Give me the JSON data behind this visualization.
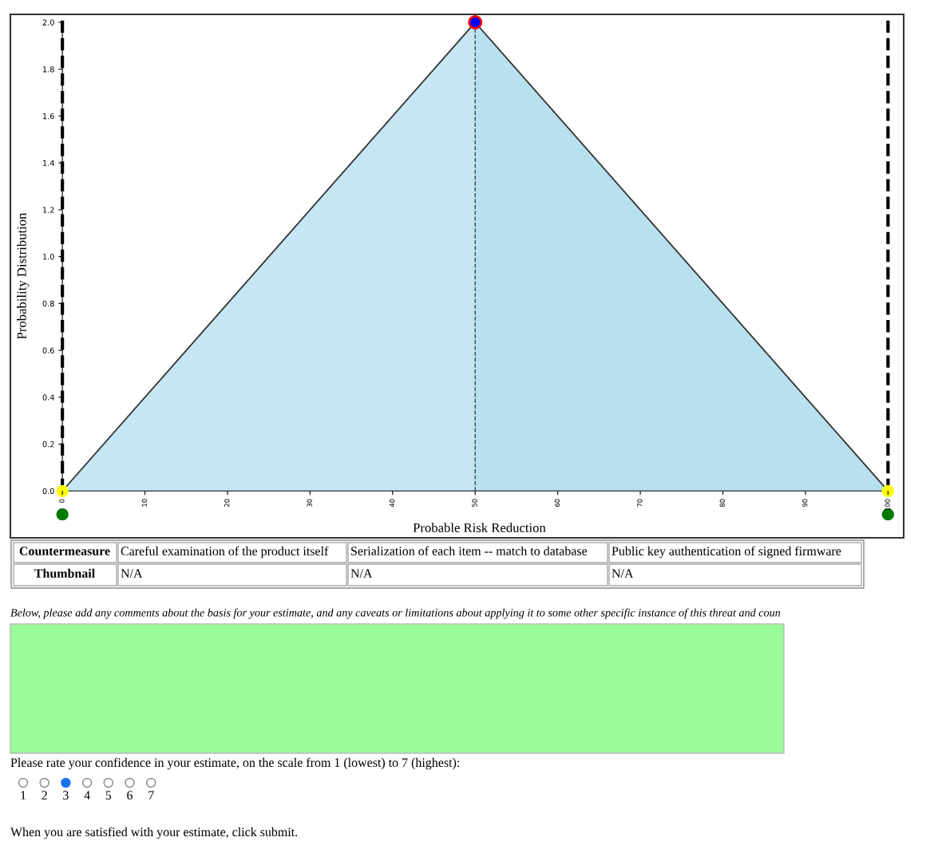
{
  "chart_data": {
    "type": "area",
    "xlabel": "Probable Risk Reduction",
    "ylabel": "Probability Distribution",
    "xlim": [
      -6.3,
      101.9
    ],
    "ylim": [
      -0.2,
      2.034
    ],
    "xticks": [
      0,
      10,
      20,
      30,
      40,
      50,
      60,
      70,
      80,
      90,
      100
    ],
    "yticks": [
      {
        "value": 0,
        "label": "0.0"
      },
      {
        "value": 0.2,
        "label": "0.2"
      },
      {
        "value": 0.4,
        "label": "0.4"
      },
      {
        "value": 0.6,
        "label": "0.6"
      },
      {
        "value": 0.8,
        "label": "0.8"
      },
      {
        "value": 1,
        "label": "1.0"
      },
      {
        "value": 1.2,
        "label": "1.2"
      },
      {
        "value": 1.4,
        "label": "1.4"
      },
      {
        "value": 1.6,
        "label": "1.6"
      },
      {
        "value": 1.8,
        "label": "1.8"
      },
      {
        "value": 2,
        "label": "2.0"
      }
    ],
    "grid": false,
    "legend": false,
    "series": [
      {
        "color": "#c5e6f2",
        "x": [
          0,
          50
        ],
        "values": [
          0,
          2
        ]
      },
      {
        "color": "#b8e1ef",
        "x": [
          50,
          100
        ],
        "values": [
          2,
          0
        ]
      },
      {
        "type": "scatter",
        "color": "#ffff00",
        "x": [
          0,
          100
        ],
        "values": [
          0,
          0
        ]
      },
      {
        "type": "scatter",
        "color": "#0000ff",
        "x": [
          50
        ],
        "values": [
          2
        ]
      },
      {
        "type": "scatter",
        "color": "#007a00",
        "x": [
          0,
          100
        ],
        "values": [
          -0.1,
          -0.1
        ]
      }
    ],
    "ref_lines": [
      {
        "axis": "x",
        "value": 50,
        "color": "#444444",
        "line_style": "dashed"
      },
      {
        "axis": "x",
        "value": 0,
        "color": "#000000",
        "line_style": "dashed"
      },
      {
        "axis": "x",
        "value": 100,
        "color": "#000000",
        "line_style": "dashed"
      }
    ],
    "annotations": [
      "Countermeasure",
      "Careful examination of the product itself",
      "Serialization of each item -- match to database",
      "Public key authentication of signed firmware",
      "Thumbnail",
      "N/A",
      "N/A",
      "N/A",
      "Below, please add any comments about the basis for your estimate, and any caveats or limitations about applying it to some other specific instance of this threat and coun",
      "Please rate your confidence in your estimate, on the scale from 1 (lowest) to 7 (highest):",
      "1",
      "2",
      "3",
      "4",
      "5",
      "6",
      "7",
      "When you are satisfied with your estimate, click submit."
    ]
  }
}
